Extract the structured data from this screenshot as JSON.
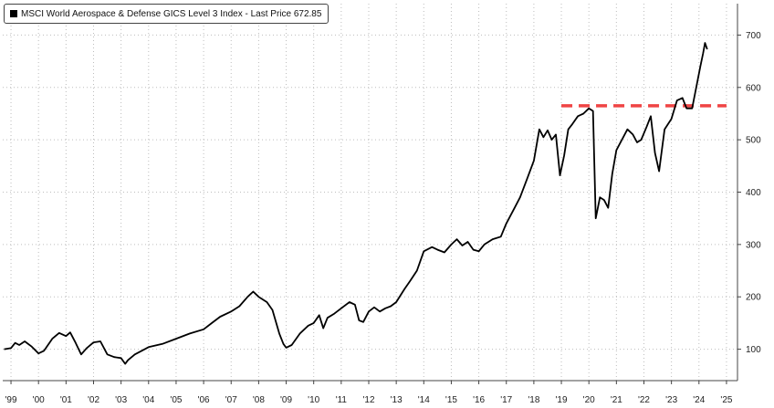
{
  "colors": {
    "background": "#ffffff",
    "grid": "#bdbdbd",
    "series_line": "#000000",
    "reference_line": "#ef4444",
    "axis_text": "#222222"
  },
  "legend": {
    "label": "MSCI World Aerospace & Defense GICS Level 3 Index - Last Price 672.85",
    "placement": "top-left",
    "swatch_color": "#000000"
  },
  "chart_data": {
    "type": "line",
    "title": "",
    "xlabel": "",
    "ylabel": "",
    "x_tick_labels": [
      "'99",
      "'00",
      "'01",
      "'02",
      "'03",
      "'04",
      "'05",
      "'06",
      "'07",
      "'08",
      "'09",
      "'10",
      "'11",
      "'12",
      "'13",
      "'14",
      "'15",
      "'16",
      "'17",
      "'18",
      "'19",
      "'20",
      "'21",
      "'22",
      "'23",
      "'24",
      "'25"
    ],
    "y_tick_labels": [
      "100",
      "200",
      "300",
      "400",
      "500",
      "600",
      "700"
    ],
    "y_ticks": [
      100,
      200,
      300,
      400,
      500,
      600,
      700
    ],
    "xlim": [
      1998.7,
      2025.4
    ],
    "ylim": [
      40,
      760
    ],
    "y_axis_position": "right",
    "grid": true,
    "series": [
      {
        "name": "MSCI World Aerospace & Defense GICS Level 3 Index",
        "color": "#000000",
        "points": [
          [
            1998.75,
            100
          ],
          [
            1999.0,
            102
          ],
          [
            1999.15,
            112
          ],
          [
            1999.3,
            108
          ],
          [
            1999.5,
            115
          ],
          [
            1999.75,
            105
          ],
          [
            2000.0,
            92
          ],
          [
            2000.2,
            97
          ],
          [
            2000.5,
            120
          ],
          [
            2000.75,
            131
          ],
          [
            2001.0,
            125
          ],
          [
            2001.15,
            132
          ],
          [
            2001.35,
            112
          ],
          [
            2001.55,
            90
          ],
          [
            2001.75,
            102
          ],
          [
            2002.0,
            113
          ],
          [
            2002.25,
            115
          ],
          [
            2002.5,
            90
          ],
          [
            2002.75,
            85
          ],
          [
            2003.0,
            83
          ],
          [
            2003.15,
            72
          ],
          [
            2003.25,
            79
          ],
          [
            2003.5,
            90
          ],
          [
            2003.75,
            97
          ],
          [
            2004.0,
            104
          ],
          [
            2004.5,
            110
          ],
          [
            2005.0,
            120
          ],
          [
            2005.5,
            130
          ],
          [
            2006.0,
            138
          ],
          [
            2006.3,
            150
          ],
          [
            2006.6,
            162
          ],
          [
            2007.0,
            172
          ],
          [
            2007.3,
            182
          ],
          [
            2007.6,
            200
          ],
          [
            2007.8,
            210
          ],
          [
            2008.0,
            200
          ],
          [
            2008.3,
            190
          ],
          [
            2008.5,
            175
          ],
          [
            2008.75,
            130
          ],
          [
            2008.9,
            110
          ],
          [
            2009.0,
            103
          ],
          [
            2009.2,
            108
          ],
          [
            2009.5,
            130
          ],
          [
            2009.8,
            145
          ],
          [
            2010.0,
            150
          ],
          [
            2010.2,
            165
          ],
          [
            2010.35,
            140
          ],
          [
            2010.5,
            160
          ],
          [
            2010.75,
            168
          ],
          [
            2011.0,
            178
          ],
          [
            2011.3,
            190
          ],
          [
            2011.5,
            185
          ],
          [
            2011.65,
            155
          ],
          [
            2011.8,
            152
          ],
          [
            2012.0,
            172
          ],
          [
            2012.2,
            180
          ],
          [
            2012.4,
            172
          ],
          [
            2012.6,
            178
          ],
          [
            2012.8,
            182
          ],
          [
            2013.0,
            190
          ],
          [
            2013.3,
            215
          ],
          [
            2013.5,
            230
          ],
          [
            2013.75,
            250
          ],
          [
            2014.0,
            287
          ],
          [
            2014.3,
            295
          ],
          [
            2014.5,
            290
          ],
          [
            2014.75,
            285
          ],
          [
            2015.0,
            300
          ],
          [
            2015.2,
            310
          ],
          [
            2015.4,
            298
          ],
          [
            2015.6,
            305
          ],
          [
            2015.8,
            290
          ],
          [
            2016.0,
            287
          ],
          [
            2016.2,
            300
          ],
          [
            2016.5,
            310
          ],
          [
            2016.8,
            315
          ],
          [
            2017.0,
            340
          ],
          [
            2017.3,
            370
          ],
          [
            2017.5,
            390
          ],
          [
            2017.75,
            425
          ],
          [
            2018.0,
            460
          ],
          [
            2018.2,
            520
          ],
          [
            2018.35,
            505
          ],
          [
            2018.5,
            518
          ],
          [
            2018.65,
            500
          ],
          [
            2018.8,
            510
          ],
          [
            2018.95,
            432
          ],
          [
            2019.1,
            470
          ],
          [
            2019.25,
            520
          ],
          [
            2019.4,
            530
          ],
          [
            2019.6,
            545
          ],
          [
            2019.8,
            550
          ],
          [
            2020.0,
            560
          ],
          [
            2020.15,
            555
          ],
          [
            2020.25,
            350
          ],
          [
            2020.4,
            390
          ],
          [
            2020.55,
            385
          ],
          [
            2020.7,
            370
          ],
          [
            2020.85,
            435
          ],
          [
            2021.0,
            480
          ],
          [
            2021.2,
            500
          ],
          [
            2021.4,
            520
          ],
          [
            2021.6,
            510
          ],
          [
            2021.75,
            495
          ],
          [
            2021.9,
            500
          ],
          [
            2022.1,
            525
          ],
          [
            2022.25,
            545
          ],
          [
            2022.4,
            475
          ],
          [
            2022.55,
            440
          ],
          [
            2022.75,
            520
          ],
          [
            2023.0,
            540
          ],
          [
            2023.2,
            575
          ],
          [
            2023.4,
            580
          ],
          [
            2023.55,
            560
          ],
          [
            2023.75,
            560
          ],
          [
            2023.9,
            600
          ],
          [
            2024.05,
            640
          ],
          [
            2024.15,
            665
          ],
          [
            2024.22,
            685
          ],
          [
            2024.3,
            672.85
          ]
        ]
      }
    ],
    "reference_line": {
      "type": "horizontal",
      "style": "dashed",
      "color": "#ef4444",
      "value": 565,
      "x_range": [
        2019.0,
        2025.0
      ]
    }
  }
}
